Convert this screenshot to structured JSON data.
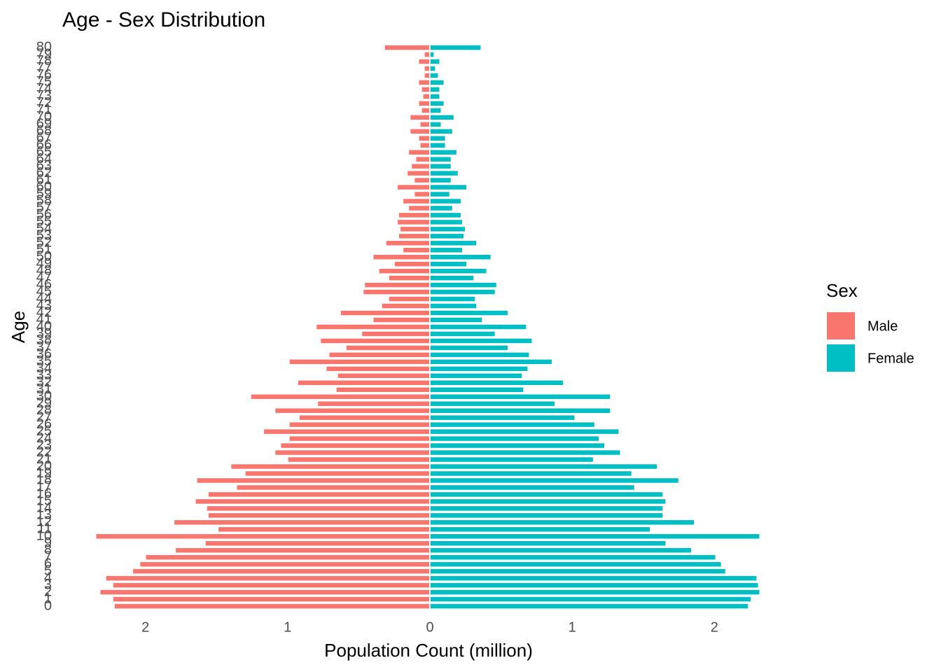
{
  "chart_data": {
    "type": "bar",
    "orientation": "horizontal",
    "title": "Age - Sex Distribution",
    "x_label": "Population Count (million)",
    "y_label": "Age",
    "legend_title": "Sex",
    "legend_position": "right",
    "grid": false,
    "categories": [
      0,
      1,
      2,
      3,
      4,
      5,
      6,
      7,
      8,
      9,
      10,
      11,
      12,
      13,
      14,
      15,
      16,
      17,
      18,
      19,
      20,
      21,
      22,
      23,
      24,
      25,
      26,
      27,
      28,
      29,
      30,
      31,
      32,
      33,
      34,
      35,
      36,
      37,
      38,
      39,
      40,
      41,
      42,
      43,
      44,
      45,
      46,
      47,
      48,
      49,
      50,
      51,
      52,
      53,
      54,
      55,
      56,
      57,
      58,
      59,
      60,
      61,
      62,
      63,
      64,
      65,
      66,
      67,
      68,
      69,
      70,
      71,
      72,
      73,
      74,
      75,
      76,
      77,
      78,
      79,
      80
    ],
    "series": [
      {
        "name": "Male",
        "color": "#F8766D",
        "values": [
          -2.22,
          -2.23,
          -2.32,
          -2.23,
          -2.28,
          -2.09,
          -2.04,
          -2,
          -1.79,
          -1.58,
          -2.35,
          -1.49,
          -1.8,
          -1.56,
          -1.57,
          -1.65,
          -1.56,
          -1.36,
          -1.64,
          -1.3,
          -1.4,
          -1,
          -1.09,
          -1.05,
          -0.99,
          -1.17,
          -0.99,
          -0.92,
          -1.09,
          -0.79,
          -1.26,
          -0.66,
          -0.93,
          -0.65,
          -0.73,
          -0.99,
          -0.71,
          -0.59,
          -0.77,
          -0.48,
          -0.8,
          -0.4,
          -0.63,
          -0.34,
          -0.29,
          -0.47,
          -0.46,
          -0.29,
          -0.36,
          -0.25,
          -0.4,
          -0.19,
          -0.31,
          -0.22,
          -0.21,
          -0.23,
          -0.22,
          -0.15,
          -0.19,
          -0.11,
          -0.23,
          -0.11,
          -0.16,
          -0.13,
          -0.1,
          -0.15,
          -0.07,
          -0.08,
          -0.14,
          -0.07,
          -0.14,
          -0.06,
          -0.08,
          -0.05,
          -0.06,
          -0.08,
          -0.04,
          -0.04,
          -0.08,
          -0.04,
          -0.32
        ]
      },
      {
        "name": "Female",
        "color": "#00BFC4",
        "values": [
          2.24,
          2.26,
          2.32,
          2.31,
          2.3,
          2.08,
          2.05,
          2.01,
          1.84,
          1.66,
          2.32,
          1.55,
          1.86,
          1.64,
          1.64,
          1.66,
          1.64,
          1.44,
          1.75,
          1.42,
          1.6,
          1.15,
          1.34,
          1.23,
          1.19,
          1.33,
          1.16,
          1.02,
          1.27,
          0.88,
          1.27,
          0.66,
          0.94,
          0.65,
          0.69,
          0.86,
          0.7,
          0.55,
          0.72,
          0.46,
          0.68,
          0.37,
          0.55,
          0.33,
          0.32,
          0.46,
          0.47,
          0.31,
          0.4,
          0.26,
          0.43,
          0.23,
          0.33,
          0.24,
          0.25,
          0.23,
          0.22,
          0.16,
          0.22,
          0.14,
          0.26,
          0.15,
          0.2,
          0.15,
          0.15,
          0.19,
          0.11,
          0.11,
          0.16,
          0.08,
          0.17,
          0.08,
          0.1,
          0.07,
          0.07,
          0.1,
          0.06,
          0.04,
          0.07,
          0.03,
          0.36
        ]
      }
    ],
    "xlim": [
      -2.55,
      2.55
    ],
    "xticks": [
      {
        "value": -2,
        "label": "2"
      },
      {
        "value": -1,
        "label": "1"
      },
      0,
      1,
      2
    ]
  }
}
